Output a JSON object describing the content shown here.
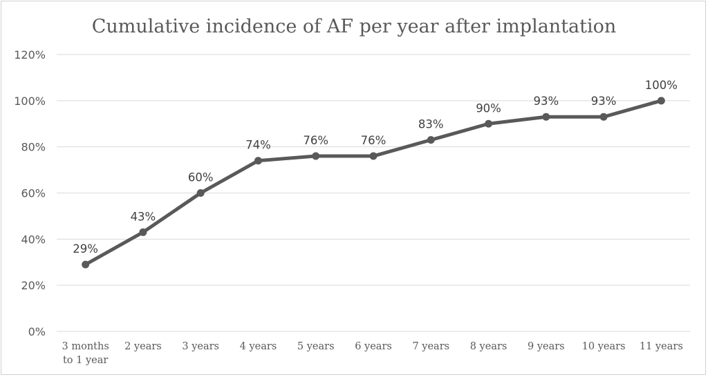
{
  "chart_data": {
    "type": "line",
    "title": "Cumulative incidence of AF per year after implantation",
    "categories": [
      "3 months\nto 1 year",
      "2 years",
      "3 years",
      "4 years",
      "5 years",
      "6 years",
      "7 years",
      "8 years",
      "9 years",
      "10 years",
      "11 years"
    ],
    "series": [
      {
        "values": [
          29,
          43,
          60,
          74,
          76,
          76,
          83,
          90,
          93,
          93,
          100
        ],
        "data_labels": [
          "29%",
          "43%",
          "60%",
          "74%",
          "76%",
          "76%",
          "83%",
          "90%",
          "93%",
          "93%",
          "100%"
        ]
      }
    ],
    "yticks": [
      "0%",
      "20%",
      "40%",
      "60%",
      "80%",
      "100%",
      "120%"
    ],
    "ylim": [
      0,
      120
    ],
    "grid": true,
    "legend": "none",
    "colors": {
      "line": "#595959",
      "grid": "#d9d9d9",
      "text": "#595959"
    }
  }
}
